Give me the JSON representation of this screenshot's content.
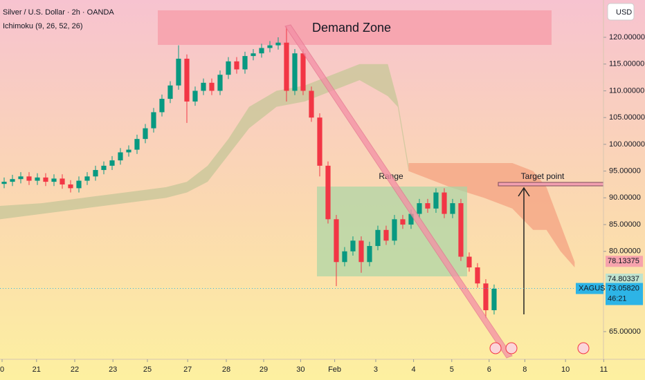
{
  "chart_data": {
    "type": "candlestick",
    "title": "Silver / U.S. Dollar · 2h · OANDA",
    "subtitle": "Ichimoku (9, 26, 52, 26)",
    "y_axis_label": "USD",
    "xlim": [
      -0.5,
      72.17
    ],
    "ylim": [
      59.83,
      126.97
    ],
    "xticks": [
      {
        "value": -0.25,
        "label": "0"
      },
      {
        "value": 3.9,
        "label": "21"
      },
      {
        "value": 8.5,
        "label": "22"
      },
      {
        "value": 13.1,
        "label": "23"
      },
      {
        "value": 17.25,
        "label": "25"
      },
      {
        "value": 22.1,
        "label": "27"
      },
      {
        "value": 26.75,
        "label": "28"
      },
      {
        "value": 31.25,
        "label": "29"
      },
      {
        "value": 35.7,
        "label": "30"
      },
      {
        "value": 39.8,
        "label": "Feb"
      },
      {
        "value": 44.75,
        "label": "3"
      },
      {
        "value": 49.3,
        "label": "4"
      },
      {
        "value": 53.9,
        "label": "5"
      },
      {
        "value": 58.4,
        "label": "6"
      },
      {
        "value": 62.7,
        "label": "8"
      },
      {
        "value": 67.6,
        "label": "10"
      },
      {
        "value": 72.2,
        "label": "11"
      }
    ],
    "yticks": [
      {
        "value": 120,
        "label": "120.00000"
      },
      {
        "value": 115,
        "label": "115.00000"
      },
      {
        "value": 110,
        "label": "110.00000"
      },
      {
        "value": 105,
        "label": "105.00000"
      },
      {
        "value": 100,
        "label": "100.00000"
      },
      {
        "value": 95,
        "label": "95.00000"
      },
      {
        "value": 90,
        "label": "90.00000"
      },
      {
        "value": 85,
        "label": "85.00000"
      },
      {
        "value": 80,
        "label": "80.00000"
      },
      {
        "value": 65,
        "label": "65.00000"
      }
    ],
    "up_color": "#089981",
    "down_color": "#f23645",
    "x": [
      0,
      1,
      2,
      3,
      4,
      5,
      6,
      7,
      8,
      9,
      10,
      11,
      12,
      13,
      14,
      15,
      16,
      17,
      18,
      19,
      20,
      21,
      22,
      23,
      24,
      25,
      26,
      27,
      28,
      29,
      30,
      31,
      32,
      33,
      34,
      35,
      36,
      37,
      38,
      39,
      40,
      41,
      42,
      43,
      44,
      45,
      46,
      47,
      48,
      49,
      50,
      51,
      52,
      53,
      54,
      55,
      56,
      57,
      58,
      59
    ],
    "open": [
      92.6,
      93,
      93.5,
      94,
      93.2,
      93.8,
      93,
      93.6,
      92.5,
      91.8,
      93.2,
      94,
      95.2,
      96,
      97,
      98.5,
      99,
      101,
      103,
      106,
      108.5,
      111,
      116,
      108,
      110,
      111.5,
      110,
      113,
      115.5,
      114,
      116.5,
      117,
      118,
      118.5,
      119,
      110,
      117,
      110,
      105,
      96,
      86,
      78,
      80,
      82,
      78,
      81,
      84,
      82,
      86,
      85,
      87,
      89,
      88,
      91,
      87,
      89,
      79,
      77,
      74,
      69
    ],
    "high": [
      93.8,
      94.3,
      94.8,
      94.8,
      94.6,
      94.6,
      94.4,
      94.4,
      93.3,
      94,
      94.8,
      96,
      96.8,
      97.8,
      99.3,
      99.8,
      101.8,
      103.8,
      106.8,
      109.3,
      111.8,
      118.5,
      116.8,
      110.8,
      112.3,
      112.3,
      113.8,
      116.3,
      116.3,
      117.3,
      117.8,
      118.8,
      119.3,
      120,
      122,
      117.8,
      117.8,
      110.8,
      105.8,
      96.8,
      86.8,
      80.8,
      82.8,
      82.8,
      81.8,
      84.8,
      84.8,
      86.8,
      86.8,
      87.8,
      89.8,
      89.8,
      91.8,
      91.8,
      89.8,
      89.8,
      79.8,
      77.8,
      74.8,
      73.8
    ],
    "low": [
      91.8,
      92.2,
      92.7,
      92.4,
      92.4,
      92.2,
      92.2,
      91.7,
      91,
      91,
      92.4,
      93.2,
      94.4,
      95.2,
      96.2,
      97.7,
      98.2,
      100.2,
      102.2,
      105.2,
      107.7,
      110.2,
      104,
      107.2,
      109.2,
      109.2,
      109.2,
      112.2,
      113.2,
      113.2,
      115.7,
      116.2,
      117.2,
      117.7,
      108,
      109.2,
      109.2,
      104.2,
      94,
      85.2,
      73.5,
      77.2,
      79.2,
      76,
      77.2,
      80.2,
      81.2,
      81.2,
      84.2,
      84.2,
      86.2,
      87.2,
      87.2,
      86.2,
      86.2,
      78.2,
      76.2,
      73.2,
      67.5,
      68.2
    ],
    "close": [
      93,
      93.5,
      94,
      93.2,
      93.8,
      93,
      93.6,
      92.5,
      91.8,
      93.2,
      94,
      95.2,
      96,
      97,
      98.5,
      99,
      101,
      103,
      106,
      108.5,
      111,
      116,
      108,
      110,
      111.5,
      110,
      113,
      115.5,
      114,
      116.5,
      117,
      118,
      118.5,
      119,
      110,
      117,
      110,
      105,
      96,
      86,
      78,
      80,
      82,
      78,
      81,
      84,
      82,
      86,
      85,
      87,
      89,
      88,
      91,
      87,
      89,
      79,
      77,
      74,
      69,
      73
    ],
    "clouds": [
      {
        "color": "#c9c79a",
        "x": [
          -0.5,
          4.5,
          9.5,
          14.5,
          19.5,
          22,
          24.5,
          27,
          29.5,
          32.8,
          36.2,
          39.5,
          42.8,
          46.2,
          47.4,
          48.7
        ],
        "upper": [
          88.5,
          89,
          90,
          91,
          92,
          93,
          96,
          101,
          107,
          110,
          111,
          113,
          115,
          115,
          108,
          96
        ],
        "lower": [
          86,
          87,
          88,
          89,
          90,
          91,
          93,
          98,
          103,
          107,
          108,
          110,
          112,
          109,
          107,
          95
        ]
      },
      {
        "color": "#f5a585",
        "x": [
          48.7,
          53.7,
          57.8,
          61.2,
          63.7,
          65.3,
          67,
          68.7
        ],
        "upper": [
          96.5,
          96.5,
          96.5,
          96.5,
          95,
          92,
          85,
          78
        ],
        "lower": [
          95,
          92,
          90,
          88,
          84,
          84,
          80,
          77
        ]
      }
    ],
    "price_labels": [
      {
        "value": 78.13375,
        "label": "78.13375",
        "color": "#f7a3ad"
      },
      {
        "value": 74.80337,
        "label": "74.80337",
        "color": "#bfe3cf"
      }
    ],
    "current_price": {
      "symbol": "XAGUSD",
      "value": 73.0582,
      "label": "73.05820",
      "countdown": "46:21",
      "color": "#2db4e6"
    },
    "annotations": {
      "demand_zone": "Demand Zone",
      "range": "Range",
      "target": "Target point"
    }
  }
}
